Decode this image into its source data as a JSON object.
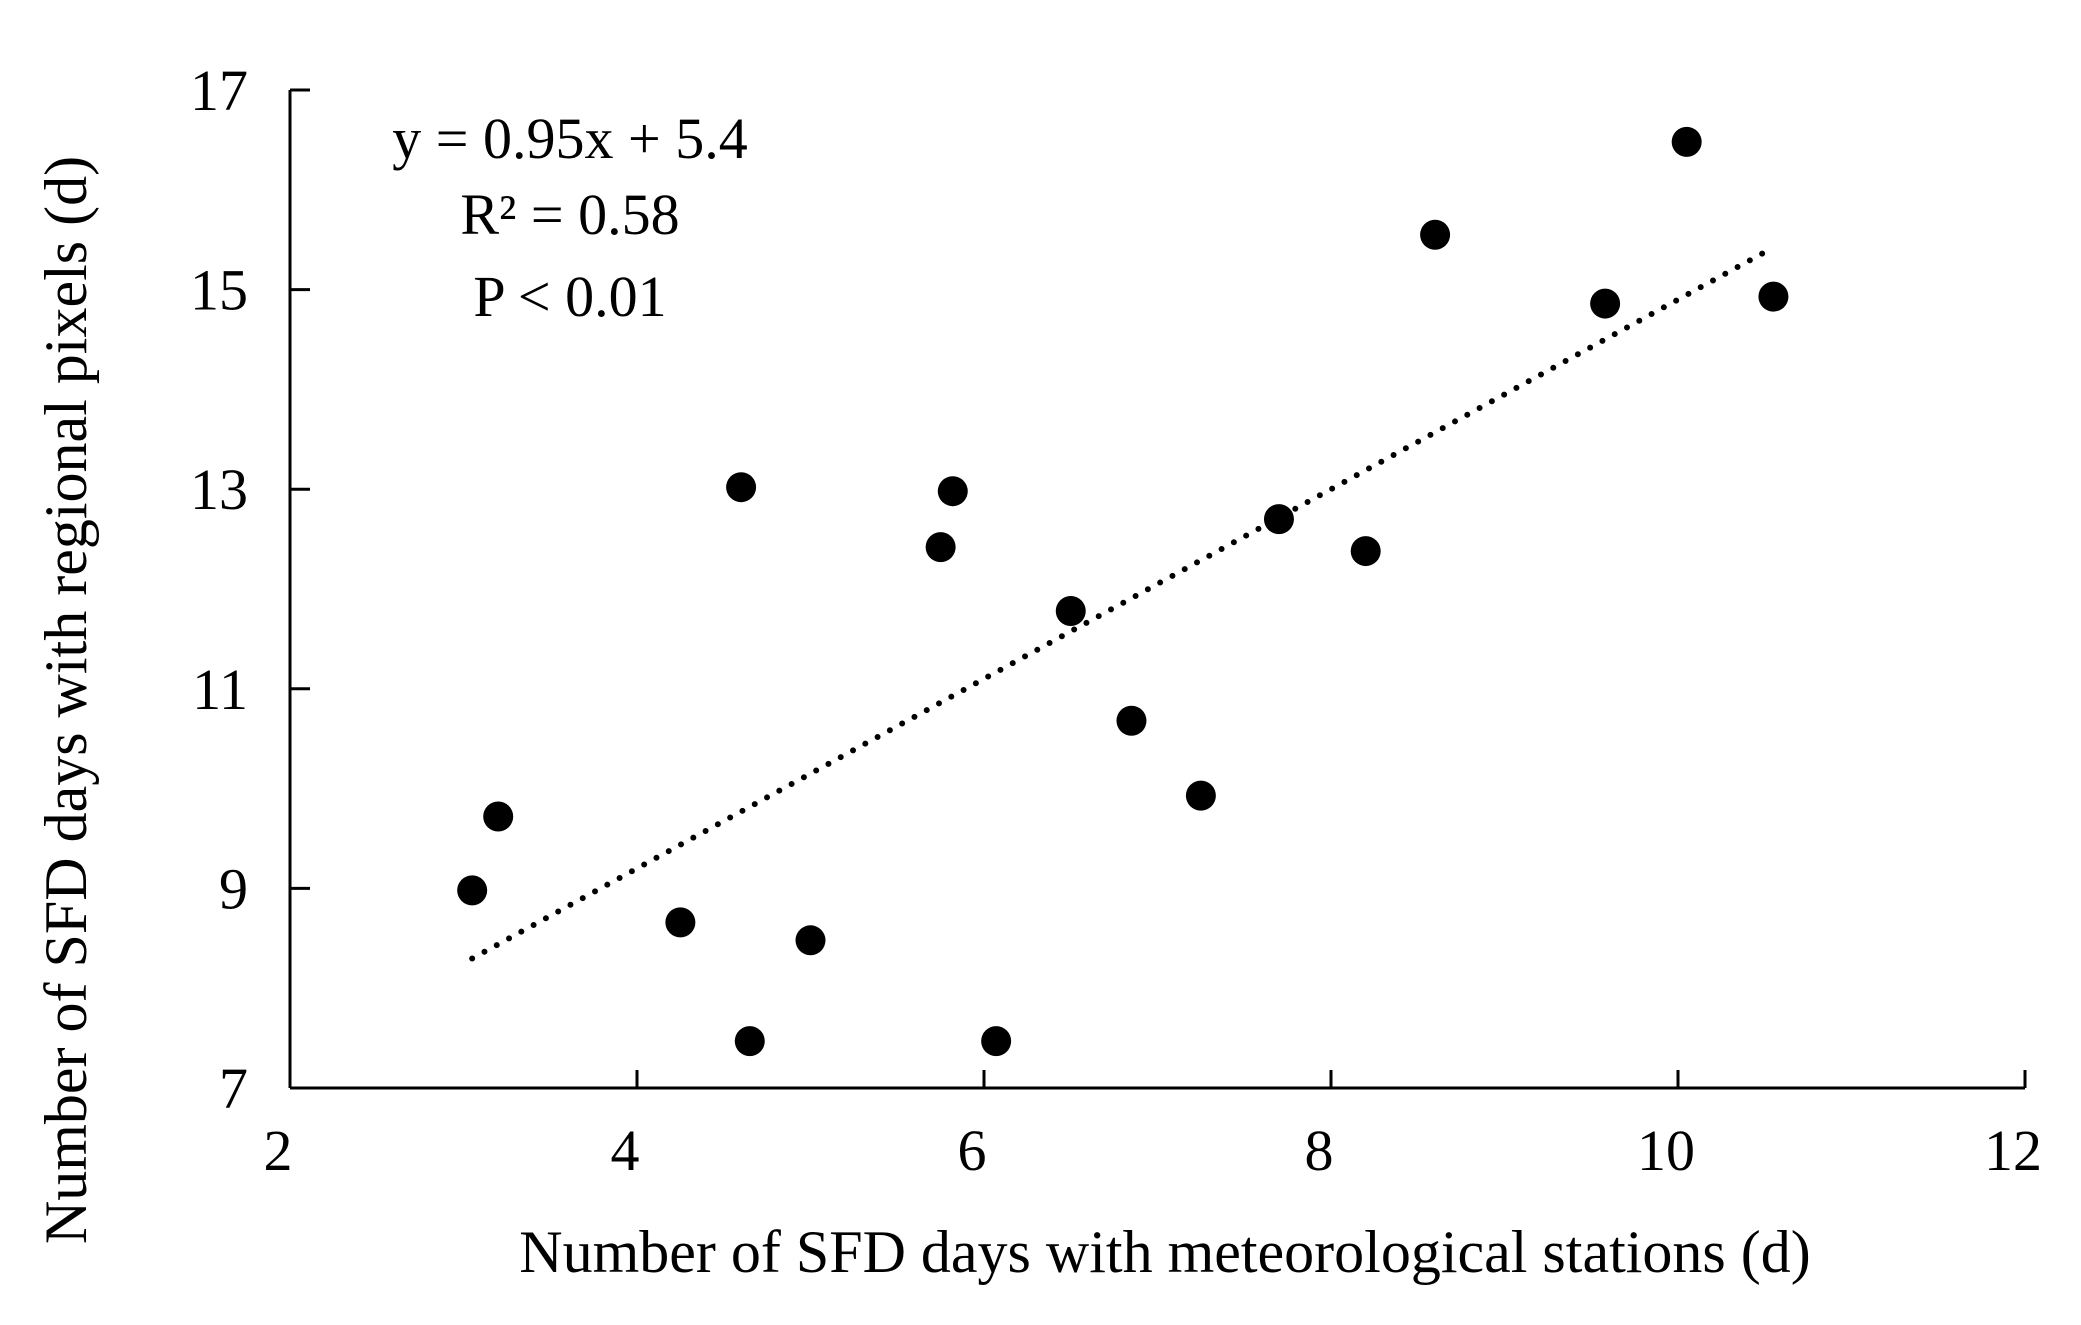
{
  "chart_data": {
    "type": "scatter",
    "xlabel": "Number of SFD days with meteorological stations (d)",
    "ylabel": "Number of SFD days with regional pixels (d)",
    "xlim": [
      2,
      12
    ],
    "ylim": [
      7,
      17
    ],
    "xticks": [
      2,
      4,
      6,
      8,
      10,
      12
    ],
    "yticks": [
      7,
      9,
      11,
      13,
      15,
      17
    ],
    "grid": false,
    "annotations": {
      "equation": "y = 0.95x + 5.4",
      "r_squared": "R² = 0.58",
      "p_value": "P < 0.01"
    },
    "points": [
      {
        "x": 3.05,
        "y": 8.98
      },
      {
        "x": 3.2,
        "y": 9.72
      },
      {
        "x": 4.25,
        "y": 8.66
      },
      {
        "x": 4.6,
        "y": 13.02
      },
      {
        "x": 4.65,
        "y": 7.47
      },
      {
        "x": 5.0,
        "y": 8.48
      },
      {
        "x": 5.75,
        "y": 12.42
      },
      {
        "x": 5.82,
        "y": 12.98
      },
      {
        "x": 6.07,
        "y": 7.47
      },
      {
        "x": 6.5,
        "y": 11.78
      },
      {
        "x": 6.85,
        "y": 10.68
      },
      {
        "x": 7.25,
        "y": 9.93
      },
      {
        "x": 7.7,
        "y": 12.7
      },
      {
        "x": 8.2,
        "y": 12.38
      },
      {
        "x": 8.6,
        "y": 15.55
      },
      {
        "x": 9.58,
        "y": 14.86
      },
      {
        "x": 10.05,
        "y": 16.48
      },
      {
        "x": 10.55,
        "y": 14.93
      }
    ],
    "trendline": {
      "style": "dotted",
      "x_start": 3.05,
      "x_end": 10.55,
      "slope": 0.95,
      "intercept": 5.4
    },
    "colors": {
      "points": "#000000",
      "axes": "#000000",
      "trendline": "#000000"
    }
  }
}
